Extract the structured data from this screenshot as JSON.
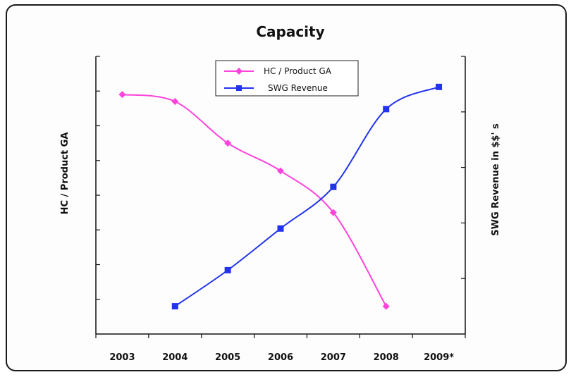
{
  "chart_data": {
    "type": "line",
    "title": "Capacity",
    "xlabel": "",
    "ylabel": "HC / Product GA",
    "y2label": "SWG Revenue in  $$' s",
    "categories": [
      "2003",
      "2004",
      "2005",
      "2006",
      "2007",
      "2008",
      "2009*"
    ],
    "ylim": [
      0,
      8
    ],
    "y2lim": [
      0,
      5
    ],
    "grid": false,
    "legend": "top-center",
    "series": [
      {
        "name": "HC / Product GA",
        "axis": "left",
        "color": "#ff44dd",
        "marker": "diamond",
        "values": [
          6.9,
          6.7,
          5.5,
          4.7,
          3.5,
          0.8,
          null
        ]
      },
      {
        "name": "SWG Revenue",
        "axis": "right",
        "color": "#2233ee",
        "marker": "square",
        "values": [
          null,
          0.5,
          1.15,
          1.9,
          2.65,
          4.05,
          4.45
        ]
      }
    ]
  }
}
